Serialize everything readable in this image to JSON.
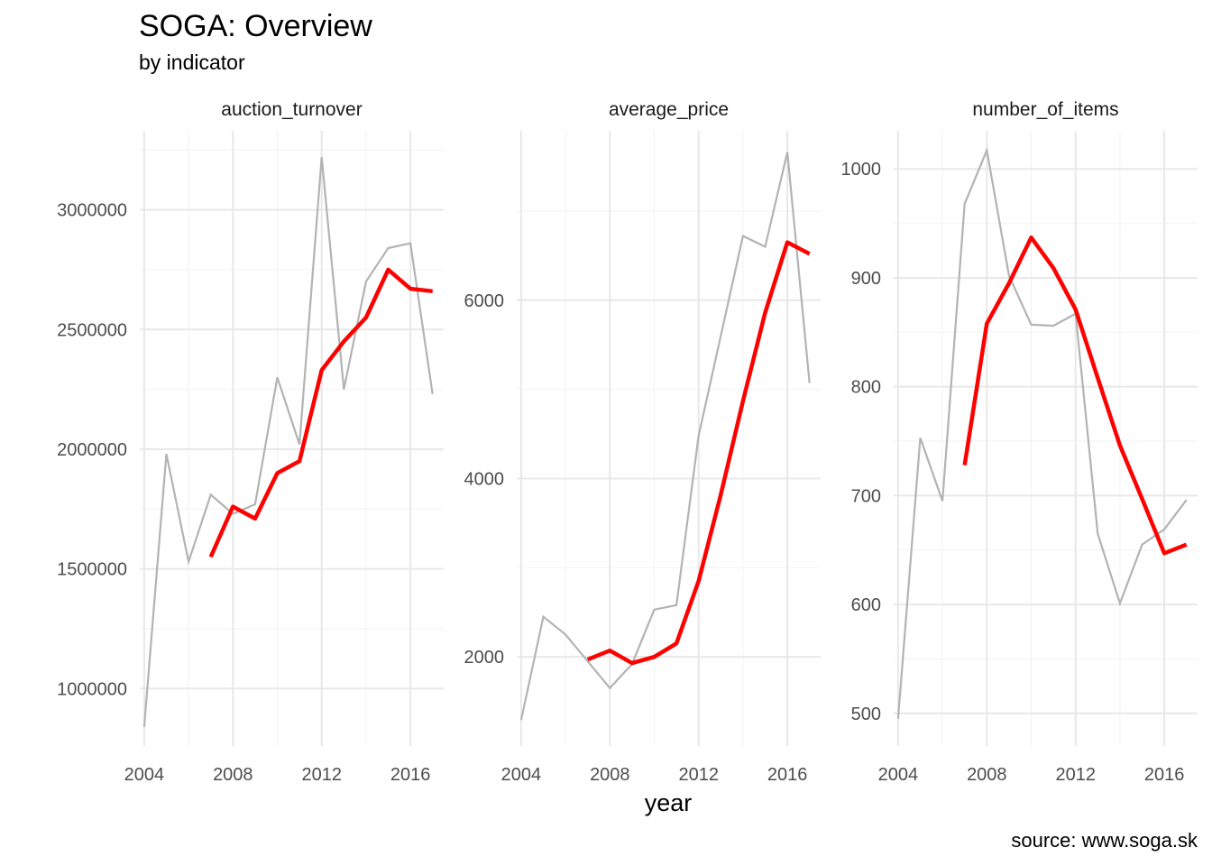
{
  "chart_data": {
    "type": "line",
    "title": "SOGA: Overview",
    "subtitle": "by indicator",
    "xlabel": "year",
    "caption": "source: www.soga.sk",
    "colors": {
      "raw": "#b3b3b3",
      "trend": "#ff0000",
      "grid": "#e8e8e8"
    },
    "grid": true,
    "panels": [
      {
        "name": "auction_turnover",
        "xlim": [
          2003.8,
          2017.5
        ],
        "xticks": [
          2004,
          2008,
          2012,
          2016
        ],
        "ylim": [
          760000,
          3330000
        ],
        "yticks": [
          1000000,
          1500000,
          2000000,
          2500000,
          3000000
        ],
        "ytick_labels": [
          "1000000",
          "1500000",
          "2000000",
          "2500000",
          "3000000"
        ],
        "series": [
          {
            "role": "raw",
            "x": [
              2004,
              2005,
              2006,
              2007,
              2008,
              2009,
              2010,
              2011,
              2012,
              2013,
              2014,
              2015,
              2016,
              2017
            ],
            "values": [
              840000,
              1980000,
              1530000,
              1810000,
              1730000,
              1770000,
              2300000,
              2020000,
              3220000,
              2250000,
              2700000,
              2840000,
              2860000,
              2230000
            ]
          },
          {
            "role": "trend",
            "x": [
              2007,
              2008,
              2009,
              2010,
              2011,
              2012,
              2013,
              2014,
              2015,
              2016,
              2017
            ],
            "values": [
              1550000,
              1760000,
              1710000,
              1900000,
              1950000,
              2330000,
              2450000,
              2550000,
              2750000,
              2670000,
              2660000
            ]
          }
        ]
      },
      {
        "name": "average_price",
        "xlim": [
          2003.8,
          2017.5
        ],
        "xticks": [
          2004,
          2008,
          2012,
          2016
        ],
        "ylim": [
          1000,
          7900
        ],
        "yticks": [
          2000,
          4000,
          6000
        ],
        "ytick_labels": [
          "2000",
          "4000",
          "6000"
        ],
        "series": [
          {
            "role": "raw",
            "x": [
              2004,
              2005,
              2006,
              2007,
              2008,
              2009,
              2010,
              2011,
              2012,
              2013,
              2014,
              2015,
              2016,
              2017
            ],
            "values": [
              1290,
              2450,
              2250,
              1950,
              1650,
              1920,
              2530,
              2580,
              4480,
              5600,
              6720,
              6600,
              7660,
              5070
            ]
          },
          {
            "role": "trend",
            "x": [
              2007,
              2008,
              2009,
              2010,
              2011,
              2012,
              2013,
              2014,
              2015,
              2016,
              2017
            ],
            "values": [
              1970,
              2070,
              1930,
              2000,
              2150,
              2850,
              3820,
              4870,
              5860,
              6650,
              6520
            ]
          }
        ]
      },
      {
        "name": "number_of_items",
        "xlim": [
          2003.8,
          2017.5
        ],
        "xticks": [
          2004,
          2008,
          2012,
          2016
        ],
        "ylim": [
          470,
          1035
        ],
        "yticks": [
          500,
          600,
          700,
          800,
          900,
          1000
        ],
        "ytick_labels": [
          "500",
          "600",
          "700",
          "800",
          "900",
          "1000"
        ],
        "series": [
          {
            "role": "raw",
            "x": [
              2004,
              2005,
              2006,
              2007,
              2008,
              2009,
              2010,
              2011,
              2012,
              2013,
              2014,
              2015,
              2016,
              2017
            ],
            "values": [
              495,
              753,
              695,
              968,
              1017,
              902,
              857,
              856,
              867,
              665,
              601,
              655,
              669,
              696
            ]
          },
          {
            "role": "trend",
            "x": [
              2007,
              2008,
              2009,
              2010,
              2011,
              2012,
              2013,
              2014,
              2015,
              2016,
              2017
            ],
            "values": [
              728,
              858,
              895,
              937,
              909,
              871,
              808,
              746,
              697,
              647,
              655
            ]
          }
        ]
      }
    ]
  }
}
